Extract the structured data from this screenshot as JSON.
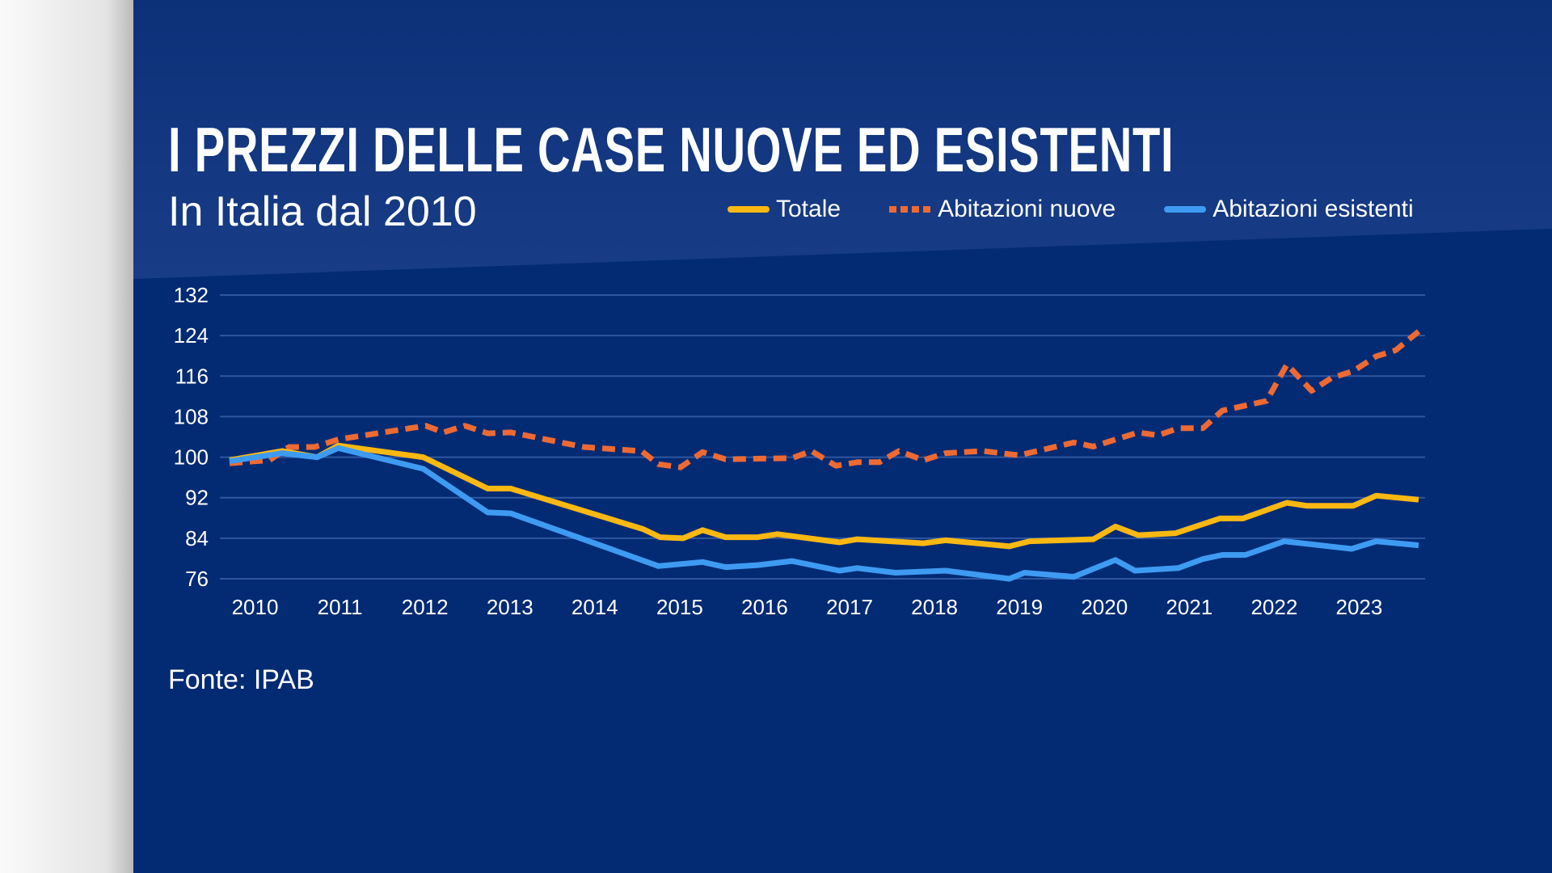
{
  "header": {
    "title": "I PREZZI DELLE CASE NUOVE ED ESISTENTI",
    "subtitle": "In Italia dal 2010"
  },
  "source": "Fonte: IPAB",
  "colors": {
    "background": "#032b74",
    "totale": "#fbb812",
    "nuove": "#ef6a33",
    "esistenti": "#3e9bf2",
    "grid": "#2f57a0"
  },
  "chart_data": {
    "type": "line",
    "title": "I PREZZI DELLE CASE NUOVE ED ESISTENTI",
    "subtitle": "In Italia dal 2010",
    "xlabel": "",
    "ylabel": "",
    "ylim": [
      76,
      132
    ],
    "yticks": [
      132,
      124,
      116,
      108,
      100,
      92,
      84,
      76
    ],
    "xticks": [
      "2010",
      "2011",
      "2012",
      "2013",
      "2014",
      "2015",
      "2016",
      "2017",
      "2018",
      "2019",
      "2020",
      "2021",
      "2022",
      "2023"
    ],
    "xlim": [
      2010,
      2024
    ],
    "grid": "horizontal",
    "legend": "top-right",
    "series": [
      {
        "name": "Totale",
        "style": "solid",
        "color": "#fbb812",
        "points": [
          [
            2010.0,
            99.4
          ],
          [
            2010.62,
            101.2
          ],
          [
            2011.03,
            100
          ],
          [
            2011.28,
            102.3
          ],
          [
            2012.28,
            100
          ],
          [
            2013.04,
            93.8
          ],
          [
            2013.31,
            93.8
          ],
          [
            2014.87,
            85.8
          ],
          [
            2015.07,
            84.2
          ],
          [
            2015.34,
            84
          ],
          [
            2015.57,
            85.6
          ],
          [
            2015.84,
            84.2
          ],
          [
            2016.22,
            84.2
          ],
          [
            2016.45,
            84.8
          ],
          [
            2017.18,
            83.2
          ],
          [
            2017.39,
            83.8
          ],
          [
            2018.17,
            83
          ],
          [
            2018.43,
            83.6
          ],
          [
            2019.18,
            82.4
          ],
          [
            2019.42,
            83.4
          ],
          [
            2020.17,
            83.8
          ],
          [
            2020.43,
            86.3
          ],
          [
            2020.7,
            84.6
          ],
          [
            2021.14,
            85
          ],
          [
            2021.66,
            87.9
          ],
          [
            2021.93,
            87.9
          ],
          [
            2022.45,
            91
          ],
          [
            2022.68,
            90.4
          ],
          [
            2023.23,
            90.4
          ],
          [
            2023.5,
            92.4
          ],
          [
            2024.0,
            91.6
          ]
        ]
      },
      {
        "name": "Abitazioni nuove",
        "style": "dashed",
        "color": "#ef6a33",
        "points": [
          [
            2010.0,
            98.8
          ],
          [
            2010.47,
            99.4
          ],
          [
            2010.7,
            102
          ],
          [
            2011.0,
            102
          ],
          [
            2011.28,
            103.5
          ],
          [
            2012.31,
            106.2
          ],
          [
            2012.52,
            104.9
          ],
          [
            2012.77,
            106.2
          ],
          [
            2013.04,
            104.7
          ],
          [
            2013.31,
            104.9
          ],
          [
            2014.17,
            102
          ],
          [
            2014.85,
            101.2
          ],
          [
            2015.05,
            98.6
          ],
          [
            2015.31,
            98
          ],
          [
            2015.57,
            101
          ],
          [
            2015.84,
            99.6
          ],
          [
            2016.62,
            99.8
          ],
          [
            2016.85,
            101.2
          ],
          [
            2017.14,
            98.3
          ],
          [
            2017.39,
            99
          ],
          [
            2017.65,
            99
          ],
          [
            2017.88,
            101.2
          ],
          [
            2018.17,
            99.4
          ],
          [
            2018.43,
            100.8
          ],
          [
            2018.87,
            101.2
          ],
          [
            2019.18,
            100.6
          ],
          [
            2019.3,
            100.4
          ],
          [
            2019.94,
            102.9
          ],
          [
            2020.17,
            102.1
          ],
          [
            2020.7,
            104.9
          ],
          [
            2020.93,
            104.3
          ],
          [
            2021.17,
            105.7
          ],
          [
            2021.46,
            105.7
          ],
          [
            2021.69,
            109.2
          ],
          [
            2022.21,
            111.1
          ],
          [
            2022.45,
            118.3
          ],
          [
            2022.74,
            113.1
          ],
          [
            2022.97,
            115.6
          ],
          [
            2023.23,
            117
          ],
          [
            2023.5,
            119.9
          ],
          [
            2023.73,
            121.1
          ],
          [
            2024.0,
            124.8
          ]
        ]
      },
      {
        "name": "Abitazioni esistenti",
        "style": "solid",
        "color": "#3e9bf2",
        "points": [
          [
            2010.0,
            99.2
          ],
          [
            2010.62,
            100.8
          ],
          [
            2011.03,
            100
          ],
          [
            2011.28,
            101.8
          ],
          [
            2012.28,
            97.7
          ],
          [
            2013.04,
            89.1
          ],
          [
            2013.31,
            88.9
          ],
          [
            2015.05,
            78.5
          ],
          [
            2015.57,
            79.3
          ],
          [
            2015.84,
            78.3
          ],
          [
            2016.22,
            78.7
          ],
          [
            2016.62,
            79.5
          ],
          [
            2017.18,
            77.6
          ],
          [
            2017.39,
            78.1
          ],
          [
            2017.84,
            77.2
          ],
          [
            2018.43,
            77.6
          ],
          [
            2019.18,
            76
          ],
          [
            2019.36,
            77.2
          ],
          [
            2019.94,
            76.4
          ],
          [
            2020.43,
            79.7
          ],
          [
            2020.66,
            77.6
          ],
          [
            2021.17,
            78.1
          ],
          [
            2021.46,
            79.9
          ],
          [
            2021.69,
            80.7
          ],
          [
            2021.96,
            80.7
          ],
          [
            2022.42,
            83.4
          ],
          [
            2023.21,
            81.9
          ],
          [
            2023.5,
            83.4
          ],
          [
            2024.0,
            82.6
          ]
        ]
      }
    ]
  }
}
